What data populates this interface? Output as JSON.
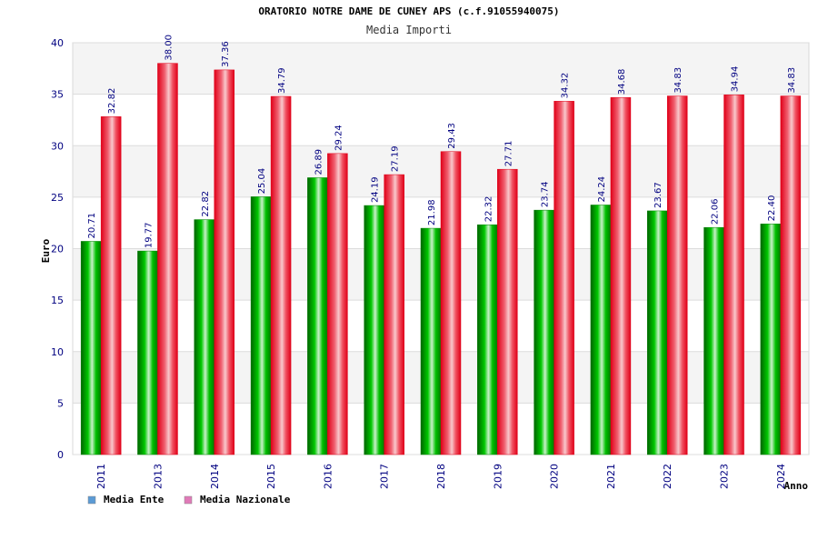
{
  "chart_data": {
    "type": "bar",
    "title": "ORATORIO NOTRE DAME DE CUNEY APS (c.f.91055940075)",
    "subtitle": "Media Importi",
    "xlabel": "Anno",
    "ylabel": "Euro",
    "ylim": [
      0,
      40
    ],
    "yticks": [
      "0",
      "5",
      "10",
      "15",
      "20",
      "25",
      "30",
      "35",
      "40"
    ],
    "grid": true,
    "legend_position": "bottom-left",
    "categories": [
      "2011",
      "2013",
      "2014",
      "2015",
      "2016",
      "2017",
      "2018",
      "2019",
      "2020",
      "2021",
      "2022",
      "2023",
      "2024"
    ],
    "series": [
      {
        "name": "Media Ente",
        "color": "#00b000",
        "legend_color": "#5b9bd5",
        "values": [
          20.71,
          19.77,
          22.82,
          25.04,
          26.89,
          24.19,
          21.98,
          22.32,
          23.74,
          24.24,
          23.67,
          22.06,
          22.4
        ],
        "labels": [
          "20.71",
          "19.77",
          "22.82",
          "25.04",
          "26.89",
          "24.19",
          "21.98",
          "22.32",
          "23.74",
          "24.24",
          "23.67",
          "22.06",
          "22.40"
        ]
      },
      {
        "name": "Media Nazionale",
        "color": "#e8001c",
        "legend_color": "#e07ab8",
        "values": [
          32.82,
          38.0,
          37.36,
          34.79,
          29.24,
          27.19,
          29.43,
          27.71,
          34.32,
          34.68,
          34.83,
          34.94,
          34.83
        ],
        "labels": [
          "32.82",
          "38.00",
          "37.36",
          "34.79",
          "29.24",
          "27.19",
          "29.43",
          "27.71",
          "34.32",
          "34.68",
          "34.83",
          "34.94",
          "34.83"
        ]
      }
    ]
  }
}
